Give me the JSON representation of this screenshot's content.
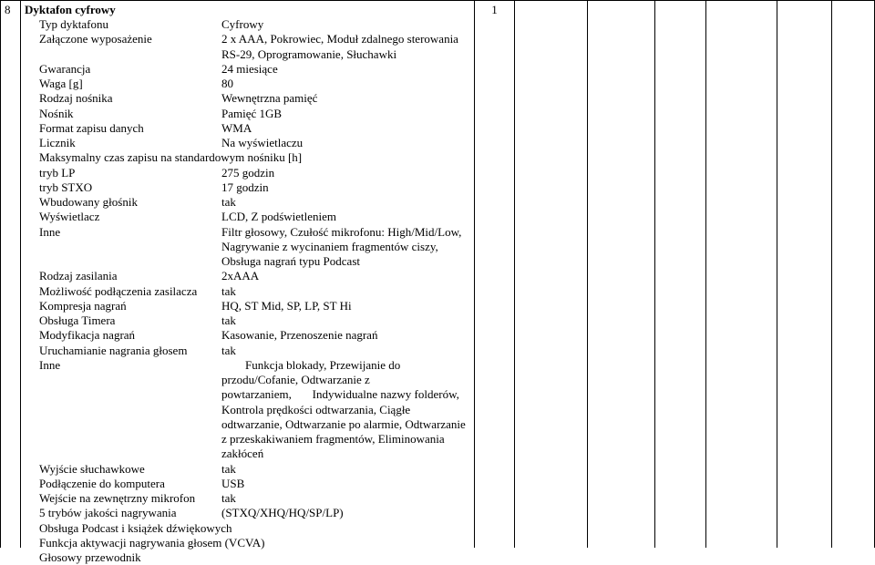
{
  "row_number": "8",
  "qty": "1",
  "title": "Dyktafon cyfrowy",
  "specs": [
    {
      "label": "Typ dyktafonu",
      "value": "Cyfrowy"
    },
    {
      "label": "Załączone wyposażenie",
      "value": "2 x AAA, Pokrowiec, Moduł zdalnego sterowania RS-29, Oprogramowanie, Słuchawki"
    },
    {
      "label": "Gwarancja",
      "value": "24 miesiące"
    },
    {
      "label": "Waga [g]",
      "value": "80"
    },
    {
      "label": "Rodzaj nośnika",
      "value": "Wewnętrzna pamięć"
    },
    {
      "label": "Nośnik",
      "value": "Pamięć 1GB"
    },
    {
      "label": "Format zapisu danych",
      "value": "WMA"
    },
    {
      "label": "Licznik",
      "value": "Na wyświetlaczu"
    }
  ],
  "full_line_1": "Maksymalny czas zapisu na standardowym nośniku [h]",
  "specs2": [
    {
      "label": "tryb LP",
      "value": "275 godzin"
    },
    {
      "label": "tryb STXO",
      "value": "17 godzin"
    },
    {
      "label": "Wbudowany głośnik",
      "value": "tak"
    },
    {
      "label": "Wyświetlacz",
      "value": "LCD, Z podświetleniem"
    },
    {
      "label": "Inne",
      "value": "Filtr głosowy, Czułość mikrofonu: High/Mid/Low, Nagrywanie z wycinaniem fragmentów ciszy, Obsługa nagrań typu Podcast"
    },
    {
      "label": "Rodzaj zasilania",
      "value": "2xAAA"
    },
    {
      "label": "Możliwość podłączenia zasilacza",
      "value": "tak"
    },
    {
      "label": "Kompresja nagrań",
      "value": "HQ, ST Mid, SP, LP, ST Hi"
    },
    {
      "label": "Obsługa Timera",
      "value": "tak"
    },
    {
      "label": "Modyfikacja nagrań",
      "value": "Kasowanie, Przenoszenie nagrań"
    },
    {
      "label": "Uruchamianie nagrania głosem",
      "value": "tak"
    }
  ],
  "inne2_label": "Inne",
  "inne2_line1": "Funkcja blokady, Przewijanie do",
  "inne2_rest": "przodu/Cofanie, Odtwarzanie z\npowtarzaniem,       Indywidualne nazwy folderów, Kontrola prędkości odtwarzania, Ciągłe odtwarzanie, Odtwarzanie po alarmie, Odtwarzanie z przeskakiwaniem fragmentów, Eliminowania zakłóceń",
  "specs3": [
    {
      "label": "Wyjście słuchawkowe",
      "value": "tak"
    },
    {
      "label": "Podłączenie do komputera",
      "value": "USB"
    },
    {
      "label": "Wejście na zewnętrzny mikrofon",
      "value": "tak"
    },
    {
      "label": "5 trybów jakości nagrywania",
      "value": "(STXQ/XHQ/HQ/SP/LP)"
    }
  ],
  "trailing": [
    "Obsługa Podcast i książek dźwiękowych",
    "Funkcja aktywacji nagrywania głosem (VCVA)",
    "Głosowy przewodnik"
  ]
}
